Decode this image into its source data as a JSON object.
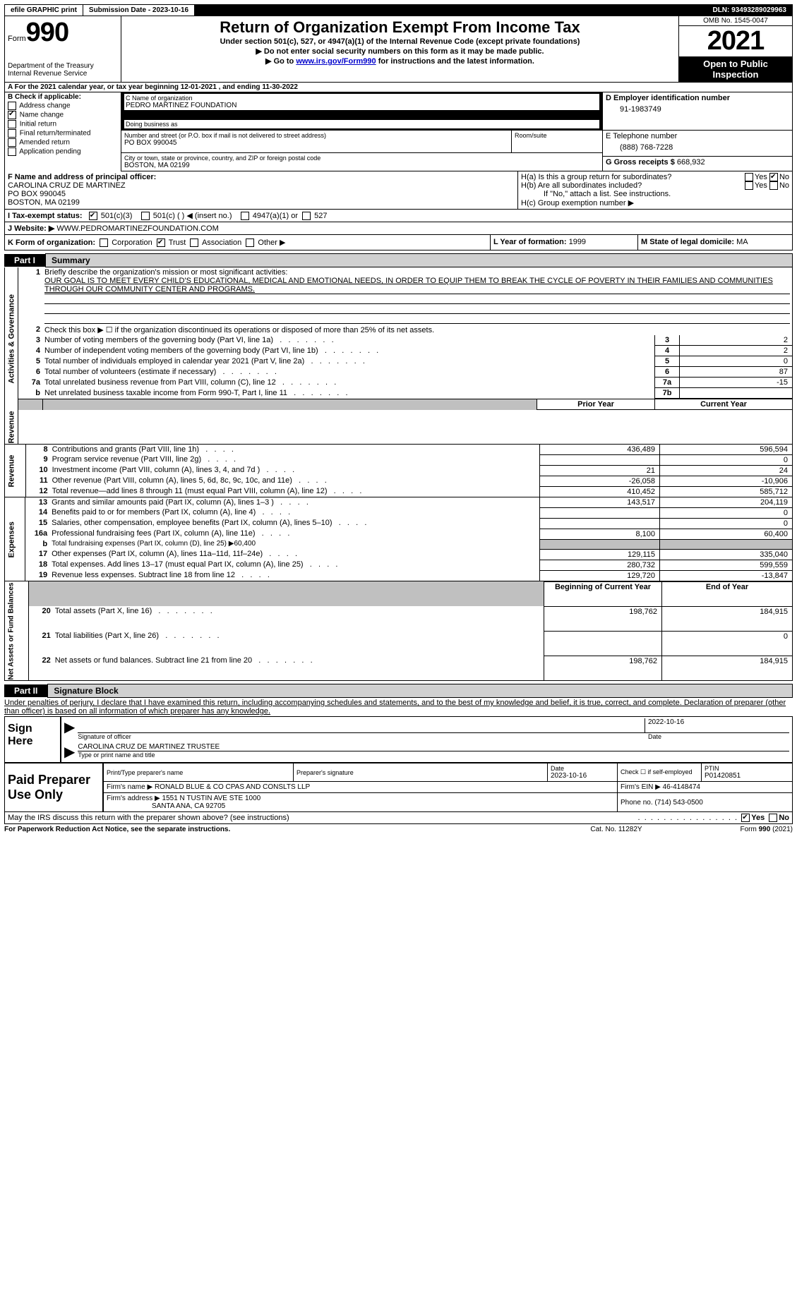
{
  "topbar": {
    "efile": "efile GRAPHIC print",
    "subdate_label": "Submission Date - 2023-10-16",
    "dln": "DLN: 93493289029963"
  },
  "header": {
    "form_word": "Form",
    "form_num": "990",
    "dept": "Department of the Treasury",
    "irs": "Internal Revenue Service",
    "title": "Return of Organization Exempt From Income Tax",
    "sub1": "Under section 501(c), 527, or 4947(a)(1) of the Internal Revenue Code (except private foundations)",
    "sub2": "▶ Do not enter social security numbers on this form as it may be made public.",
    "sub3a": "▶ Go to ",
    "sub3_link": "www.irs.gov/Form990",
    "sub3b": " for instructions and the latest information.",
    "omb": "OMB No. 1545-0047",
    "year": "2021",
    "open": "Open to Public Inspection"
  },
  "line_a": "A For the 2021 calendar year, or tax year beginning 12-01-2021   , and ending 11-30-2022",
  "col_b": {
    "hdr": "B Check if applicable:",
    "addr": "Address change",
    "name": "Name change",
    "init": "Initial return",
    "final": "Final return/terminated",
    "amend": "Amended return",
    "app": "Application pending"
  },
  "col_c": {
    "name_lbl": "C Name of organization",
    "name": "PEDRO MARTINEZ FOUNDATION",
    "dba_lbl": "Doing business as",
    "dba": "",
    "street_lbl": "Number and street (or P.O. box if mail is not delivered to street address)",
    "room_lbl": "Room/suite",
    "street": "PO BOX 990045",
    "city_lbl": "City or town, state or province, country, and ZIP or foreign postal code",
    "city": "BOSTON, MA  02199"
  },
  "col_d": {
    "ein_lbl": "D Employer identification number",
    "ein": "91-1983749",
    "tel_lbl": "E Telephone number",
    "tel": "(888) 768-7228",
    "gross_lbl": "G Gross receipts $",
    "gross": "668,932"
  },
  "row_f": {
    "lbl": "F  Name and address of principal officer:",
    "name": "CAROLINA CRUZ DE MARTINEZ",
    "addr1": "PO BOX 990045",
    "addr2": "BOSTON, MA  02199"
  },
  "row_h": {
    "ha": "H(a)  Is this a group return for subordinates?",
    "hb": "H(b)  Are all subordinates included?",
    "hb_note": "If \"No,\" attach a list. See instructions.",
    "hc": "H(c)  Group exemption number ▶",
    "yes": "Yes",
    "no": "No"
  },
  "row_i": {
    "lbl": "I   Tax-exempt status:",
    "o1": "501(c)(3)",
    "o2": "501(c) (  ) ◀ (insert no.)",
    "o3": "4947(a)(1) or",
    "o4": "527"
  },
  "row_j": {
    "lbl": "J   Website: ▶",
    "val": "  WWW.PEDROMARTINEZFOUNDATION.COM"
  },
  "row_k": {
    "lbl": "K Form of organization:",
    "corp": "Corporation",
    "trust": "Trust",
    "assoc": "Association",
    "other": "Other ▶",
    "l_lbl": "L Year of formation:",
    "l_val": "1999",
    "m_lbl": "M State of legal domicile:",
    "m_val": "MA"
  },
  "part1": {
    "tab": "Part I",
    "title": "Summary"
  },
  "summary": {
    "side_act": "Activities & Governance",
    "side_rev": "Revenue",
    "side_exp": "Expenses",
    "side_net": "Net Assets or Fund Balances",
    "l1_lbl": "Briefly describe the organization's mission or most significant activities:",
    "l1_txt": "OUR GOAL IS TO MEET EVERY CHILD'S EDUCATIONAL, MEDICAL AND EMOTIONAL NEEDS, IN ORDER TO EQUIP THEM TO BREAK THE CYCLE OF POVERTY IN THEIR FAMILIES AND COMMUNITIES THROUGH OUR COMMUNITY CENTER AND PROGRAMS.",
    "l2": "Check this box ▶ ☐  if the organization discontinued its operations or disposed of more than 25% of its net assets.",
    "rows": [
      {
        "n": "3",
        "t": "Number of voting members of the governing body (Part VI, line 1a)",
        "box": "3",
        "v": "2"
      },
      {
        "n": "4",
        "t": "Number of independent voting members of the governing body (Part VI, line 1b)",
        "box": "4",
        "v": "2"
      },
      {
        "n": "5",
        "t": "Total number of individuals employed in calendar year 2021 (Part V, line 2a)",
        "box": "5",
        "v": "0"
      },
      {
        "n": "6",
        "t": "Total number of volunteers (estimate if necessary)",
        "box": "6",
        "v": "87"
      },
      {
        "n": "7a",
        "t": "Total unrelated business revenue from Part VIII, column (C), line 12",
        "box": "7a",
        "v": "-15"
      },
      {
        "n": "b",
        "t": "Net unrelated business taxable income from Form 990-T, Part I, line 11",
        "box": "7b",
        "v": ""
      }
    ],
    "prior_hdr": "Prior Year",
    "curr_hdr": "Current Year",
    "rev_rows": [
      {
        "n": "8",
        "t": "Contributions and grants (Part VIII, line 1h)",
        "p": "436,489",
        "c": "596,594"
      },
      {
        "n": "9",
        "t": "Program service revenue (Part VIII, line 2g)",
        "p": "",
        "c": "0"
      },
      {
        "n": "10",
        "t": "Investment income (Part VIII, column (A), lines 3, 4, and 7d )",
        "p": "21",
        "c": "24"
      },
      {
        "n": "11",
        "t": "Other revenue (Part VIII, column (A), lines 5, 6d, 8c, 9c, 10c, and 11e)",
        "p": "-26,058",
        "c": "-10,906"
      },
      {
        "n": "12",
        "t": "Total revenue—add lines 8 through 11 (must equal Part VIII, column (A), line 12)",
        "p": "410,452",
        "c": "585,712"
      }
    ],
    "exp_rows": [
      {
        "n": "13",
        "t": "Grants and similar amounts paid (Part IX, column (A), lines 1–3 )",
        "p": "143,517",
        "c": "204,119"
      },
      {
        "n": "14",
        "t": "Benefits paid to or for members (Part IX, column (A), line 4)",
        "p": "",
        "c": "0"
      },
      {
        "n": "15",
        "t": "Salaries, other compensation, employee benefits (Part IX, column (A), lines 5–10)",
        "p": "",
        "c": "0"
      },
      {
        "n": "16a",
        "t": "Professional fundraising fees (Part IX, column (A), line 11e)",
        "p": "8,100",
        "c": "60,400"
      }
    ],
    "l16b": "Total fundraising expenses (Part IX, column (D), line 25) ▶60,400",
    "exp_rows2": [
      {
        "n": "17",
        "t": "Other expenses (Part IX, column (A), lines 11a–11d, 11f–24e)",
        "p": "129,115",
        "c": "335,040"
      },
      {
        "n": "18",
        "t": "Total expenses. Add lines 13–17 (must equal Part IX, column (A), line 25)",
        "p": "280,732",
        "c": "599,559"
      },
      {
        "n": "19",
        "t": "Revenue less expenses. Subtract line 18 from line 12",
        "p": "129,720",
        "c": "-13,847"
      }
    ],
    "boy_hdr": "Beginning of Current Year",
    "eoy_hdr": "End of Year",
    "net_rows": [
      {
        "n": "20",
        "t": "Total assets (Part X, line 16)",
        "p": "198,762",
        "c": "184,915"
      },
      {
        "n": "21",
        "t": "Total liabilities (Part X, line 26)",
        "p": "",
        "c": "0"
      },
      {
        "n": "22",
        "t": "Net assets or fund balances. Subtract line 21 from line 20",
        "p": "198,762",
        "c": "184,915"
      }
    ]
  },
  "part2": {
    "tab": "Part II",
    "title": "Signature Block",
    "jurat": "Under penalties of perjury, I declare that I have examined this return, including accompanying schedules and statements, and to the best of my knowledge and belief, it is true, correct, and complete. Declaration of preparer (other than officer) is based on all information of which preparer has any knowledge."
  },
  "sign": {
    "here": "Sign Here",
    "sig_of": "Signature of officer",
    "date": "Date",
    "sig_date": "2022-10-16",
    "name": "CAROLINA CRUZ DE MARTINEZ  TRUSTEE",
    "type_lbl": "Type or print name and title"
  },
  "prep": {
    "lbl": "Paid Preparer Use Only",
    "name_lbl": "Print/Type preparer's name",
    "sig_lbl": "Preparer's signature",
    "date_lbl": "Date",
    "date": "2023-10-16",
    "check_lbl": "Check ☐ if self-employed",
    "ptin_lbl": "PTIN",
    "ptin": "P01420851",
    "firm_name_lbl": "Firm's name      ▶",
    "firm_name": "RONALD BLUE & CO CPAS AND CONSLTS LLP",
    "firm_ein_lbl": "Firm's EIN ▶",
    "firm_ein": "46-4148474",
    "firm_addr_lbl": "Firm's address ▶",
    "firm_addr1": "1551 N TUSTIN AVE STE 1000",
    "firm_addr2": "SANTA ANA, CA  92705",
    "phone_lbl": "Phone no.",
    "phone": "(714) 543-0500"
  },
  "footer": {
    "discuss": "May the IRS discuss this return with the preparer shown above? (see instructions)",
    "yes": "Yes",
    "no": "No",
    "pra": "For Paperwork Reduction Act Notice, see the separate instructions.",
    "cat": "Cat. No. 11282Y",
    "form": "Form 990 (2021)"
  }
}
